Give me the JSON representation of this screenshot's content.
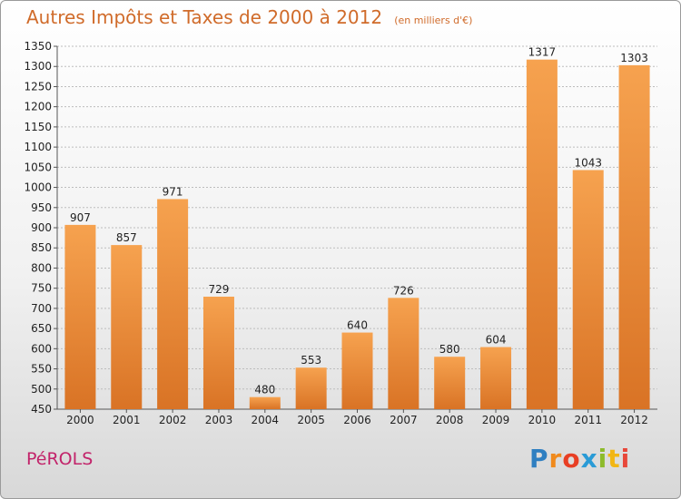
{
  "header": {
    "title": "Autres Impôts et Taxes de 2000 à 2012",
    "unit": "(en milliers d'€)"
  },
  "footer": {
    "commune": "PéROLS",
    "logo_letters": [
      "P",
      "r",
      "o",
      "x",
      "i",
      "t",
      "i"
    ],
    "logo_colors": [
      "#2f7fc1",
      "#f08a1c",
      "#e83f24",
      "#2a9bd6",
      "#8dbb2b",
      "#f2b614",
      "#e8473a"
    ]
  },
  "colors": {
    "bar_light": "#f6a24f",
    "bar_dark": "#d97325",
    "grid": "#bdbdbd",
    "title": "#d06b2a",
    "commune": "#c2236a"
  },
  "chart_data": {
    "type": "bar",
    "title": "Autres Impôts et Taxes de 2000 à 2012",
    "subtitle": "(en milliers d'€)",
    "categories": [
      "2000",
      "2001",
      "2002",
      "2003",
      "2004",
      "2005",
      "2006",
      "2007",
      "2008",
      "2009",
      "2010",
      "2011",
      "2012"
    ],
    "values": [
      907,
      857,
      971,
      729,
      480,
      553,
      640,
      726,
      580,
      604,
      1317,
      1043,
      1303
    ],
    "ylim": [
      450,
      1350
    ],
    "yticks": [
      450,
      500,
      550,
      600,
      650,
      700,
      750,
      800,
      850,
      900,
      950,
      1000,
      1050,
      1100,
      1150,
      1200,
      1250,
      1300,
      1350
    ],
    "grid": true,
    "legend": "none"
  }
}
